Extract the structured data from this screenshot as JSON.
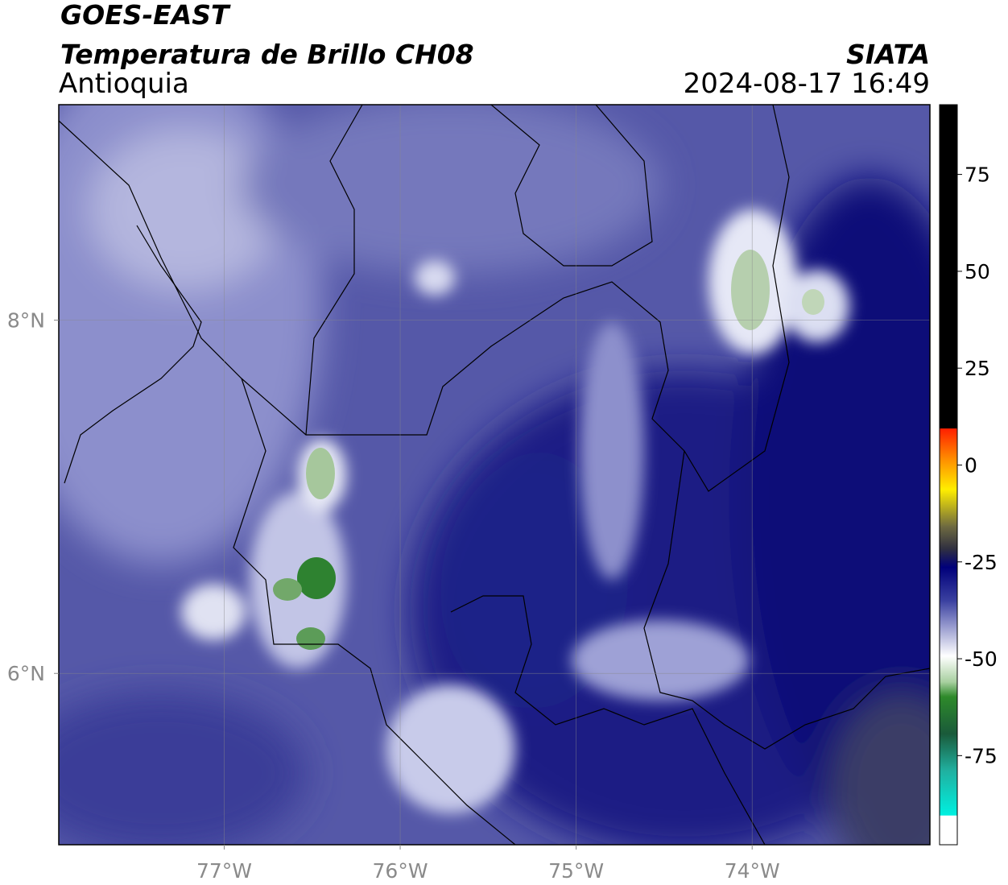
{
  "header": {
    "title": "GOES-EAST",
    "subtitle": "Temperatura de Brillo CH08",
    "region": "Antioquia",
    "source": "SIATA",
    "datetime": "2024-08-17 16:49"
  },
  "map": {
    "lonlim": [
      -77.94,
      -72.99
    ],
    "latlim": [
      5.03,
      9.22
    ],
    "lon_ticks": [
      {
        "value": -77,
        "label": "77°W"
      },
      {
        "value": -76,
        "label": "76°W"
      },
      {
        "value": -75,
        "label": "75°W"
      },
      {
        "value": -74,
        "label": "74°W"
      }
    ],
    "lat_ticks": [
      {
        "value": 8,
        "label": "8°N"
      },
      {
        "value": 6,
        "label": "6°N"
      }
    ]
  },
  "colorbar": {
    "lim": [
      -98,
      93
    ],
    "ticks": [
      75,
      50,
      25,
      0,
      -25,
      -50,
      -75
    ]
  }
}
